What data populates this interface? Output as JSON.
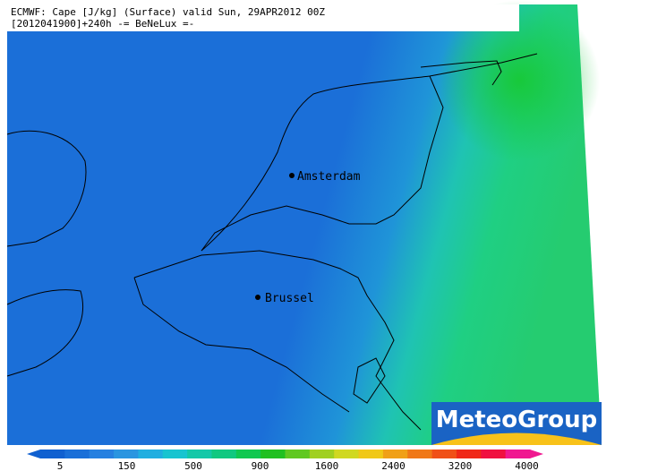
{
  "header": {
    "line1": "ECMWF: Cape [J/kg] (Surface) valid Sun, 29APR2012 00Z",
    "line2": "[2012041900]+240h -= BeNeLux =-"
  },
  "cities": [
    {
      "name": "Amsterdam"
    },
    {
      "name": "Brussel"
    }
  ],
  "logo": "MeteoGroup",
  "colorbar": {
    "ticks": [
      5,
      150,
      500,
      900,
      1600,
      2400,
      3200,
      4000
    ]
  }
}
